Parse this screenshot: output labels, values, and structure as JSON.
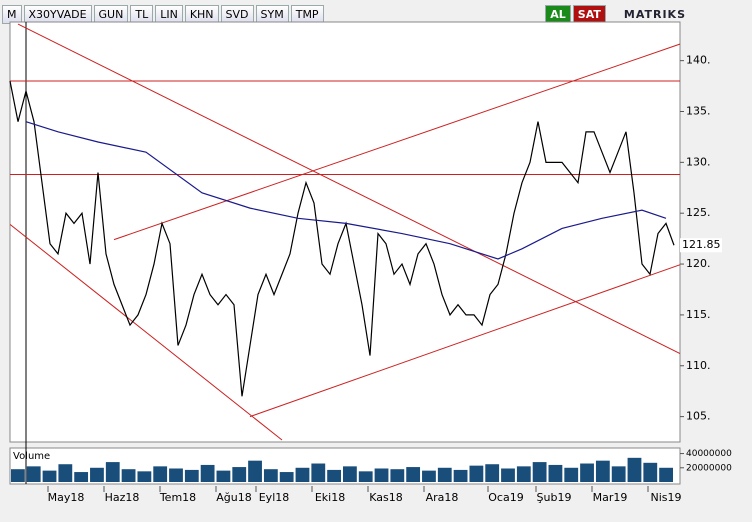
{
  "toolbar": {
    "items": [
      "M",
      "X30YVADE",
      "GUN",
      "TL",
      "LIN",
      "KHN",
      "SVD",
      "SYM",
      "TMP"
    ],
    "buy": "AL",
    "sell": "SAT",
    "brand": "MATRIKS"
  },
  "chart_data": {
    "type": "line",
    "series": [
      {
        "name": "X30YVADE",
        "color": "#000000",
        "values": [
          138,
          134,
          137,
          134,
          128,
          122,
          121,
          125,
          124,
          125,
          120,
          129,
          121,
          118,
          116,
          114,
          115,
          117,
          120,
          124,
          122,
          112,
          114,
          117,
          119,
          117,
          116,
          117,
          116,
          107,
          112,
          117,
          119,
          117,
          119,
          121,
          125,
          128,
          126,
          120,
          119,
          122,
          124,
          120,
          116,
          111,
          123,
          122,
          119,
          120,
          118,
          121,
          122,
          120,
          117,
          115,
          116,
          115,
          115,
          114,
          117,
          118,
          121,
          125,
          128,
          130,
          134,
          130,
          130,
          130,
          129,
          128,
          133,
          133,
          131,
          129,
          131,
          133,
          127,
          120,
          119,
          123,
          124,
          121.85
        ]
      },
      {
        "name": "MA",
        "color": "#1a1a8c",
        "x": [
          2,
          6,
          11,
          17,
          24,
          30,
          36,
          42,
          49,
          55,
          61,
          64,
          69,
          74,
          79,
          82
        ],
        "values": [
          134,
          133,
          132,
          131,
          127,
          125.5,
          124.5,
          124,
          123,
          122,
          120.5,
          121.5,
          123.5,
          124.5,
          125.3,
          124.5
        ]
      }
    ],
    "last_price": 121.85,
    "xlim": [
      0,
      83
    ],
    "xticks": [
      {
        "value": 7,
        "label": "May18"
      },
      {
        "value": 14,
        "label": "Haz18"
      },
      {
        "value": 21,
        "label": "Tem18"
      },
      {
        "value": 28,
        "label": "Ağu18"
      },
      {
        "value": 33,
        "label": "Eyl18"
      },
      {
        "value": 40,
        "label": "Eki18"
      },
      {
        "value": 47,
        "label": "Kas18"
      },
      {
        "value": 54,
        "label": "Ara18"
      },
      {
        "value": 62,
        "label": "Oca19"
      },
      {
        "value": 68,
        "label": "Şub19"
      },
      {
        "value": 75,
        "label": "Mar19"
      },
      {
        "value": 82,
        "label": "Nis19"
      }
    ],
    "ylim": [
      102.7,
      143.8
    ],
    "yticks": [
      {
        "value": 105,
        "label": "105."
      },
      {
        "value": 110,
        "label": "110."
      },
      {
        "value": 115,
        "label": "115."
      },
      {
        "value": 120,
        "label": "120."
      },
      {
        "value": 125,
        "label": "125."
      },
      {
        "value": 130,
        "label": "130."
      },
      {
        "value": 135,
        "label": "135."
      },
      {
        "value": 140,
        "label": "140."
      }
    ],
    "trend_color": "#cc2020",
    "hlines": [
      138,
      128.8
    ],
    "trendlines": [
      {
        "x": [
          1,
          84
        ],
        "y": [
          143.6,
          111.1
        ]
      },
      {
        "x": [
          0,
          34
        ],
        "y": [
          123.9,
          102.7
        ]
      },
      {
        "x": [
          30,
          84
        ],
        "y": [
          105,
          120
        ]
      },
      {
        "x": [
          13,
          84
        ],
        "y": [
          122.4,
          141.7
        ]
      }
    ],
    "volume": {
      "name": "Volume",
      "color": "#1a4e7a",
      "values": [
        18000000,
        22000000,
        16000000,
        25000000,
        14000000,
        20000000,
        28000000,
        18000000,
        15000000,
        22000000,
        19000000,
        17000000,
        24000000,
        16000000,
        21000000,
        30000000,
        18000000,
        14000000,
        20000000,
        26000000,
        17000000,
        22000000,
        15000000,
        19000000,
        18000000,
        21000000,
        16000000,
        20000000,
        17000000,
        23000000,
        25000000,
        19000000,
        22000000,
        28000000,
        24000000,
        20000000,
        26000000,
        30000000,
        22000000,
        34000000,
        27000000,
        20000000
      ],
      "ylim": [
        0,
        45000000
      ],
      "yticks": [
        20000000,
        40000000
      ]
    }
  }
}
